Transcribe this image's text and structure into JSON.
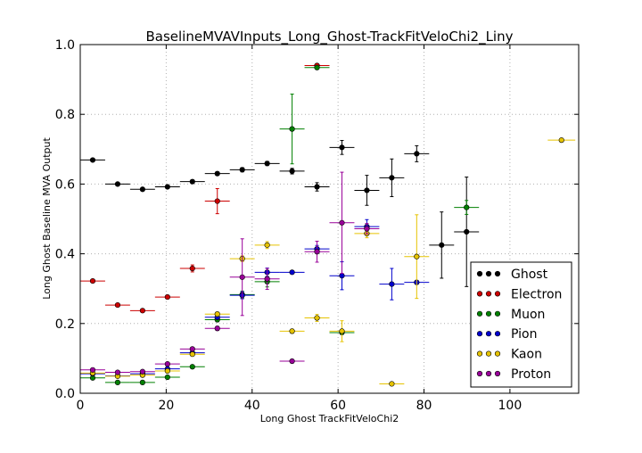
{
  "chart_data": {
    "type": "scatter",
    "title": "BaselineMVAVInputs_Long_Ghost-TrackFitVeloChi2_Liny",
    "xlabel": "Long Ghost TrackFitVeloChi2",
    "ylabel": "Long Ghost Baseline MVA Output",
    "xlim": [
      0,
      116
    ],
    "ylim": [
      0.0,
      1.0
    ],
    "x_ticks": [
      0,
      20,
      40,
      60,
      80,
      100
    ],
    "x_tick_labels": [
      "0",
      "20",
      "40",
      "60",
      "80",
      "100"
    ],
    "y_ticks": [
      0.0,
      0.2,
      0.4,
      0.6,
      0.8,
      1.0
    ],
    "y_tick_labels": [
      "0.0",
      "0.2",
      "0.4",
      "0.6",
      "0.8",
      "1.0"
    ],
    "grid": true,
    "legend_position": "lower-right",
    "series": [
      {
        "name": "Ghost",
        "color": "#000000",
        "points": [
          {
            "x": 2.9,
            "y": 0.669,
            "xerr": 2.9,
            "yerr": 0.003
          },
          {
            "x": 8.7,
            "y": 0.6,
            "xerr": 2.9,
            "yerr": 0.004
          },
          {
            "x": 14.5,
            "y": 0.585,
            "xerr": 2.9,
            "yerr": 0.004
          },
          {
            "x": 20.3,
            "y": 0.592,
            "xerr": 2.9,
            "yerr": 0.004
          },
          {
            "x": 26.1,
            "y": 0.607,
            "xerr": 2.9,
            "yerr": 0.005
          },
          {
            "x": 31.9,
            "y": 0.63,
            "xerr": 2.9,
            "yerr": 0.005
          },
          {
            "x": 37.7,
            "y": 0.641,
            "xerr": 2.9,
            "yerr": 0.006
          },
          {
            "x": 43.5,
            "y": 0.659,
            "xerr": 2.9,
            "yerr": 0.006
          },
          {
            "x": 49.3,
            "y": 0.637,
            "xerr": 2.9,
            "yerr": 0.008
          },
          {
            "x": 55.1,
            "y": 0.592,
            "xerr": 2.9,
            "yerr": 0.012
          },
          {
            "x": 60.9,
            "y": 0.705,
            "xerr": 2.9,
            "yerr": 0.02
          },
          {
            "x": 66.7,
            "y": 0.582,
            "xerr": 2.9,
            "yerr": 0.043
          },
          {
            "x": 72.5,
            "y": 0.618,
            "xerr": 2.9,
            "yerr": 0.054
          },
          {
            "x": 78.3,
            "y": 0.687,
            "xerr": 2.9,
            "yerr": 0.023
          },
          {
            "x": 84.1,
            "y": 0.425,
            "xerr": 2.9,
            "yerr": 0.095
          },
          {
            "x": 89.9,
            "y": 0.463,
            "xerr": 2.9,
            "yerr": 0.157
          }
        ]
      },
      {
        "name": "Electron",
        "color": "#cc0000",
        "points": [
          {
            "x": 2.9,
            "y": 0.322,
            "xerr": 2.9,
            "yerr": 0.003
          },
          {
            "x": 8.7,
            "y": 0.253,
            "xerr": 2.9,
            "yerr": 0.004
          },
          {
            "x": 14.5,
            "y": 0.237,
            "xerr": 2.9,
            "yerr": 0.004
          },
          {
            "x": 20.3,
            "y": 0.276,
            "xerr": 2.9,
            "yerr": 0.005
          },
          {
            "x": 26.1,
            "y": 0.358,
            "xerr": 2.9,
            "yerr": 0.01
          },
          {
            "x": 31.9,
            "y": 0.551,
            "xerr": 2.9,
            "yerr": 0.036
          },
          {
            "x": 55.1,
            "y": 0.94,
            "xerr": 2.9,
            "yerr": 0.005
          }
        ]
      },
      {
        "name": "Muon",
        "color": "#008000",
        "points": [
          {
            "x": 2.9,
            "y": 0.044,
            "xerr": 2.9,
            "yerr": 0.002
          },
          {
            "x": 8.7,
            "y": 0.031,
            "xerr": 2.9,
            "yerr": 0.002
          },
          {
            "x": 14.5,
            "y": 0.031,
            "xerr": 2.9,
            "yerr": 0.002
          },
          {
            "x": 20.3,
            "y": 0.046,
            "xerr": 2.9,
            "yerr": 0.003
          },
          {
            "x": 26.1,
            "y": 0.076,
            "xerr": 2.9,
            "yerr": 0.004
          },
          {
            "x": 31.9,
            "y": 0.211,
            "xerr": 2.9,
            "yerr": 0.006
          },
          {
            "x": 37.7,
            "y": 0.283,
            "xerr": 2.9,
            "yerr": 0.01
          },
          {
            "x": 43.5,
            "y": 0.32,
            "xerr": 2.9,
            "yerr": 0.015
          },
          {
            "x": 49.3,
            "y": 0.758,
            "xerr": 2.9,
            "yerr": 0.1
          },
          {
            "x": 55.1,
            "y": 0.934,
            "xerr": 2.9,
            "yerr": 0.005
          },
          {
            "x": 60.9,
            "y": 0.174,
            "xerr": 2.9,
            "yerr": 0.005
          },
          {
            "x": 89.9,
            "y": 0.533,
            "xerr": 2.9,
            "yerr": 0.02
          }
        ]
      },
      {
        "name": "Pion",
        "color": "#0000cc",
        "points": [
          {
            "x": 2.9,
            "y": 0.056,
            "xerr": 2.9,
            "yerr": 0.002
          },
          {
            "x": 8.7,
            "y": 0.05,
            "xerr": 2.9,
            "yerr": 0.002
          },
          {
            "x": 14.5,
            "y": 0.056,
            "xerr": 2.9,
            "yerr": 0.002
          },
          {
            "x": 20.3,
            "y": 0.07,
            "xerr": 2.9,
            "yerr": 0.003
          },
          {
            "x": 26.1,
            "y": 0.116,
            "xerr": 2.9,
            "yerr": 0.004
          },
          {
            "x": 31.9,
            "y": 0.218,
            "xerr": 2.9,
            "yerr": 0.006
          },
          {
            "x": 37.7,
            "y": 0.281,
            "xerr": 2.9,
            "yerr": 0.01
          },
          {
            "x": 43.5,
            "y": 0.347,
            "xerr": 2.9,
            "yerr": 0.012
          },
          {
            "x": 49.3,
            "y": 0.347,
            "xerr": 2.9,
            "yerr": 0.004
          },
          {
            "x": 55.1,
            "y": 0.414,
            "xerr": 2.9,
            "yerr": 0.01
          },
          {
            "x": 60.9,
            "y": 0.337,
            "xerr": 2.9,
            "yerr": 0.04
          },
          {
            "x": 66.7,
            "y": 0.478,
            "xerr": 2.9,
            "yerr": 0.02
          },
          {
            "x": 72.5,
            "y": 0.313,
            "xerr": 2.9,
            "yerr": 0.045
          },
          {
            "x": 78.3,
            "y": 0.318,
            "xerr": 2.9,
            "yerr": 0.005
          }
        ]
      },
      {
        "name": "Kaon",
        "color": "#e6c300",
        "points": [
          {
            "x": 2.9,
            "y": 0.058,
            "xerr": 2.9,
            "yerr": 0.002
          },
          {
            "x": 8.7,
            "y": 0.049,
            "xerr": 2.9,
            "yerr": 0.002
          },
          {
            "x": 14.5,
            "y": 0.052,
            "xerr": 2.9,
            "yerr": 0.002
          },
          {
            "x": 20.3,
            "y": 0.064,
            "xerr": 2.9,
            "yerr": 0.003
          },
          {
            "x": 26.1,
            "y": 0.112,
            "xerr": 2.9,
            "yerr": 0.004
          },
          {
            "x": 31.9,
            "y": 0.227,
            "xerr": 2.9,
            "yerr": 0.006
          },
          {
            "x": 37.7,
            "y": 0.386,
            "xerr": 2.9,
            "yerr": 0.008
          },
          {
            "x": 43.5,
            "y": 0.425,
            "xerr": 2.9,
            "yerr": 0.01
          },
          {
            "x": 49.3,
            "y": 0.178,
            "xerr": 2.9,
            "yerr": 0.006
          },
          {
            "x": 55.1,
            "y": 0.216,
            "xerr": 2.9,
            "yerr": 0.01
          },
          {
            "x": 60.9,
            "y": 0.178,
            "xerr": 2.9,
            "yerr": 0.03
          },
          {
            "x": 66.7,
            "y": 0.458,
            "xerr": 2.9,
            "yerr": 0.012
          },
          {
            "x": 72.5,
            "y": 0.027,
            "xerr": 2.9,
            "yerr": 0.004
          },
          {
            "x": 78.3,
            "y": 0.392,
            "xerr": 2.9,
            "yerr": 0.12
          },
          {
            "x": 112.0,
            "y": 0.726,
            "xerr": 3.2,
            "yerr": 0.003
          }
        ]
      },
      {
        "name": "Proton",
        "color": "#990099",
        "points": [
          {
            "x": 2.9,
            "y": 0.067,
            "xerr": 2.9,
            "yerr": 0.002
          },
          {
            "x": 8.7,
            "y": 0.06,
            "xerr": 2.9,
            "yerr": 0.002
          },
          {
            "x": 14.5,
            "y": 0.062,
            "xerr": 2.9,
            "yerr": 0.002
          },
          {
            "x": 20.3,
            "y": 0.084,
            "xerr": 2.9,
            "yerr": 0.003
          },
          {
            "x": 26.1,
            "y": 0.127,
            "xerr": 2.9,
            "yerr": 0.004
          },
          {
            "x": 31.9,
            "y": 0.186,
            "xerr": 2.9,
            "yerr": 0.006
          },
          {
            "x": 37.7,
            "y": 0.333,
            "xerr": 2.9,
            "yerr": 0.11
          },
          {
            "x": 43.5,
            "y": 0.328,
            "xerr": 2.9,
            "yerr": 0.03
          },
          {
            "x": 49.3,
            "y": 0.092,
            "xerr": 2.9,
            "yerr": 0.005
          },
          {
            "x": 55.1,
            "y": 0.406,
            "xerr": 2.9,
            "yerr": 0.03
          },
          {
            "x": 60.9,
            "y": 0.489,
            "xerr": 2.9,
            "yerr": 0.145
          },
          {
            "x": 66.7,
            "y": 0.472,
            "xerr": 2.9,
            "yerr": 0.015
          }
        ]
      }
    ]
  }
}
